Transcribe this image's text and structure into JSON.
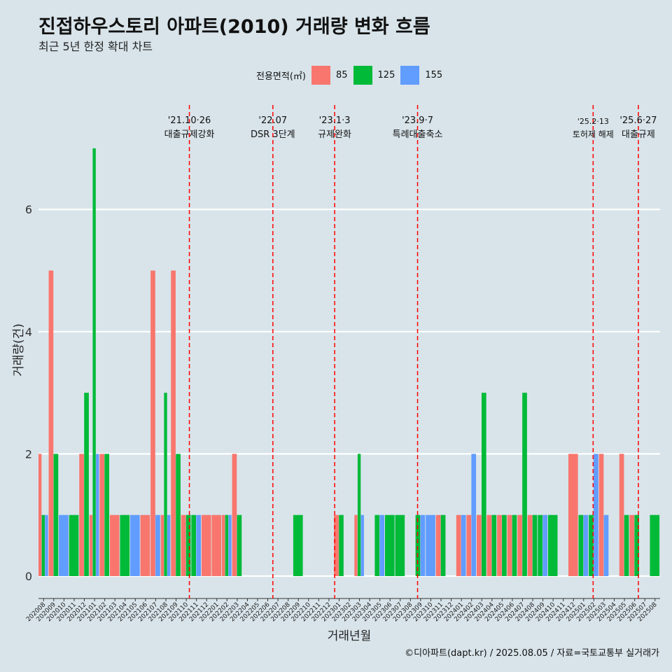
{
  "title": "진접하우스토리 아파트(2010) 거래량 변화 흐름",
  "subtitle": "최근 5년 한정 확대 차트",
  "legend": {
    "title": "전용면적(㎡)",
    "items": [
      {
        "label": "85",
        "color": "#f8766d"
      },
      {
        "label": "125",
        "color": "#00ba38"
      },
      {
        "label": "155",
        "color": "#619cff"
      }
    ]
  },
  "caption": "©디아파트(dapt.kr) / 2025.08.05 / 자료=국토교통부 실거래가",
  "chart_data": {
    "type": "bar",
    "xlabel": "거래년월",
    "ylabel": "거래량(건)",
    "ylim": [
      0,
      7
    ],
    "yticks": [
      0,
      2,
      4,
      6
    ],
    "grid": true,
    "legend_position": "top",
    "categories": [
      "202008",
      "202009",
      "202010",
      "202011",
      "202012",
      "202101",
      "202102",
      "202103",
      "202104",
      "202105",
      "202106",
      "202107",
      "202108",
      "202109",
      "202110",
      "202111",
      "202112",
      "202201",
      "202202",
      "202203",
      "202204",
      "202205",
      "202206",
      "202207",
      "202208",
      "202209",
      "202210",
      "202211",
      "202212",
      "202301",
      "202302",
      "202303",
      "202304",
      "202305",
      "202306",
      "202307",
      "202308",
      "202309",
      "202310",
      "202311",
      "202312",
      "202401",
      "202402",
      "202403",
      "202404",
      "202405",
      "202406",
      "202407",
      "202408",
      "202409",
      "202410",
      "202411",
      "202412",
      "202501",
      "202502",
      "202503",
      "202504",
      "202505",
      "202506",
      "202507",
      "202508"
    ],
    "bars": [
      {
        "month": "202008",
        "area": "85",
        "value": 2
      },
      {
        "month": "202008",
        "area": "125",
        "value": 1
      },
      {
        "month": "202008",
        "area": "155",
        "value": 1
      },
      {
        "month": "202009",
        "area": "85",
        "value": 5
      },
      {
        "month": "202009",
        "area": "125",
        "value": 2
      },
      {
        "month": "202010",
        "area": "155",
        "value": 1
      },
      {
        "month": "202011",
        "area": "125",
        "value": 1
      },
      {
        "month": "202012",
        "area": "85",
        "value": 2
      },
      {
        "month": "202012",
        "area": "125",
        "value": 3
      },
      {
        "month": "202101",
        "area": "85",
        "value": 1
      },
      {
        "month": "202101",
        "area": "125",
        "value": 7
      },
      {
        "month": "202101",
        "area": "155",
        "value": 2
      },
      {
        "month": "202102",
        "area": "85",
        "value": 2
      },
      {
        "month": "202102",
        "area": "125",
        "value": 2
      },
      {
        "month": "202103",
        "area": "85",
        "value": 1
      },
      {
        "month": "202104",
        "area": "125",
        "value": 1
      },
      {
        "month": "202105",
        "area": "155",
        "value": 1
      },
      {
        "month": "202106",
        "area": "85",
        "value": 1
      },
      {
        "month": "202107",
        "area": "85",
        "value": 5
      },
      {
        "month": "202107",
        "area": "155",
        "value": 1
      },
      {
        "month": "202108",
        "area": "85",
        "value": 1
      },
      {
        "month": "202108",
        "area": "125",
        "value": 3
      },
      {
        "month": "202108",
        "area": "155",
        "value": 1
      },
      {
        "month": "202109",
        "area": "85",
        "value": 5
      },
      {
        "month": "202109",
        "area": "125",
        "value": 2
      },
      {
        "month": "202110",
        "area": "85",
        "value": 1
      },
      {
        "month": "202110",
        "area": "125",
        "value": 1
      },
      {
        "month": "202111",
        "area": "125",
        "value": 1
      },
      {
        "month": "202111",
        "area": "155",
        "value": 1
      },
      {
        "month": "202112",
        "area": "85",
        "value": 1
      },
      {
        "month": "202201",
        "area": "85",
        "value": 1
      },
      {
        "month": "202202",
        "area": "85",
        "value": 1
      },
      {
        "month": "202202",
        "area": "125",
        "value": 1
      },
      {
        "month": "202202",
        "area": "155",
        "value": 1
      },
      {
        "month": "202203",
        "area": "85",
        "value": 2
      },
      {
        "month": "202203",
        "area": "125",
        "value": 1
      },
      {
        "month": "202209",
        "area": "125",
        "value": 1
      },
      {
        "month": "202301",
        "area": "85",
        "value": 1
      },
      {
        "month": "202301",
        "area": "125",
        "value": 1
      },
      {
        "month": "202303",
        "area": "85",
        "value": 1
      },
      {
        "month": "202303",
        "area": "125",
        "value": 2
      },
      {
        "month": "202303",
        "area": "155",
        "value": 1
      },
      {
        "month": "202305",
        "area": "125",
        "value": 1
      },
      {
        "month": "202305",
        "area": "155",
        "value": 1
      },
      {
        "month": "202306",
        "area": "125",
        "value": 1
      },
      {
        "month": "202307",
        "area": "125",
        "value": 1
      },
      {
        "month": "202309",
        "area": "125",
        "value": 1
      },
      {
        "month": "202309",
        "area": "155",
        "value": 1
      },
      {
        "month": "202310",
        "area": "155",
        "value": 1
      },
      {
        "month": "202311",
        "area": "85",
        "value": 1
      },
      {
        "month": "202311",
        "area": "125",
        "value": 1
      },
      {
        "month": "202401",
        "area": "85",
        "value": 1
      },
      {
        "month": "202401",
        "area": "155",
        "value": 1
      },
      {
        "month": "202402",
        "area": "85",
        "value": 1
      },
      {
        "month": "202402",
        "area": "155",
        "value": 2
      },
      {
        "month": "202403",
        "area": "85",
        "value": 1
      },
      {
        "month": "202403",
        "area": "125",
        "value": 3
      },
      {
        "month": "202404",
        "area": "85",
        "value": 1
      },
      {
        "month": "202404",
        "area": "125",
        "value": 1
      },
      {
        "month": "202405",
        "area": "85",
        "value": 1
      },
      {
        "month": "202405",
        "area": "125",
        "value": 1
      },
      {
        "month": "202406",
        "area": "85",
        "value": 1
      },
      {
        "month": "202406",
        "area": "125",
        "value": 1
      },
      {
        "month": "202407",
        "area": "85",
        "value": 1
      },
      {
        "month": "202407",
        "area": "125",
        "value": 3
      },
      {
        "month": "202408",
        "area": "85",
        "value": 1
      },
      {
        "month": "202408",
        "area": "125",
        "value": 1
      },
      {
        "month": "202409",
        "area": "125",
        "value": 1
      },
      {
        "month": "202409",
        "area": "155",
        "value": 1
      },
      {
        "month": "202410",
        "area": "125",
        "value": 1
      },
      {
        "month": "202412",
        "area": "85",
        "value": 2
      },
      {
        "month": "202501",
        "area": "125",
        "value": 1
      },
      {
        "month": "202501",
        "area": "155",
        "value": 1
      },
      {
        "month": "202502",
        "area": "125",
        "value": 1
      },
      {
        "month": "202502",
        "area": "155",
        "value": 2
      },
      {
        "month": "202503",
        "area": "85",
        "value": 2
      },
      {
        "month": "202503",
        "area": "155",
        "value": 1
      },
      {
        "month": "202505",
        "area": "85",
        "value": 2
      },
      {
        "month": "202505",
        "area": "125",
        "value": 1
      },
      {
        "month": "202506",
        "area": "85",
        "value": 1
      },
      {
        "month": "202506",
        "area": "125",
        "value": 1
      },
      {
        "month": "202508",
        "area": "125",
        "value": 1
      }
    ],
    "events": [
      {
        "date": "2021-10-26",
        "label_top": "'21.10·26",
        "label_bottom": "대출규제강화"
      },
      {
        "date": "2022-07-01",
        "label_top": "'22.07",
        "label_bottom": "DSR 3단계"
      },
      {
        "date": "2023-01-03",
        "label_top": "'23.1·3",
        "label_bottom": "규제완화"
      },
      {
        "date": "2023-09-07",
        "label_top": "'23.9·7",
        "label_bottom": "특례대출축소"
      },
      {
        "date": "2025-02-13",
        "label_top": "'25.2·13",
        "label_bottom": "토허제 해제"
      },
      {
        "date": "2025-06-27",
        "label_top": "'25.6·27",
        "label_bottom": "대출규제"
      }
    ]
  }
}
